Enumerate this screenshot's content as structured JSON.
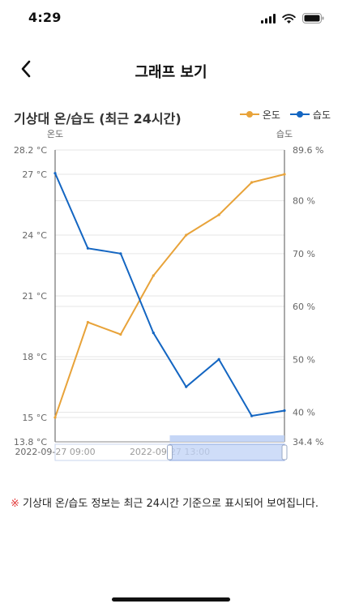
{
  "status_bar": {
    "time": "4:29"
  },
  "nav": {
    "title": "그래프 보기"
  },
  "chart_title": "기상대 온/습도 (최근 24시간)",
  "legend": {
    "temp_label": "온도",
    "humidity_label": "습도"
  },
  "notice": {
    "mark": "※",
    "text": " 기상대 온/습도 정보는 최근 24시간 기준으로 표시되어 보여집니다."
  },
  "colors": {
    "temperature": "#E8A33A",
    "humidity": "#1466C2",
    "zoom_fill": "#BFD1F5"
  },
  "chart_data": {
    "type": "line",
    "left_axis_label": "온도",
    "right_axis_label": "습도",
    "x_tick_labels": [
      "2022-09-27 09:00",
      "2022-09-27 13:00"
    ],
    "y_left": {
      "min": 13.8,
      "max": 28.2,
      "ticks": [
        15,
        18,
        21,
        24,
        27
      ],
      "min_label": "13.8 °C",
      "max_label": "28.2 °C",
      "tick_labels": [
        "15 °C",
        "18 °C",
        "21 °C",
        "24 °C",
        "27 °C"
      ]
    },
    "y_right": {
      "min": 34.4,
      "max": 89.6,
      "ticks": [
        40,
        50,
        60,
        70,
        80
      ],
      "min_label": "34.4 %",
      "max_label": "89.6 %",
      "tick_labels": [
        "40 %",
        "50 %",
        "60 %",
        "70 %",
        "80 %"
      ]
    },
    "series": [
      {
        "name": "온도",
        "axis": "left",
        "values": [
          15.0,
          19.7,
          19.1,
          22.0,
          24.0,
          25.0,
          26.6,
          27.0
        ]
      },
      {
        "name": "습도",
        "axis": "right",
        "values": [
          85.2,
          71.0,
          70.0,
          55.0,
          44.8,
          50.0,
          39.3,
          40.3
        ]
      }
    ],
    "zoom_range": [
      0.5,
      1.0
    ]
  }
}
